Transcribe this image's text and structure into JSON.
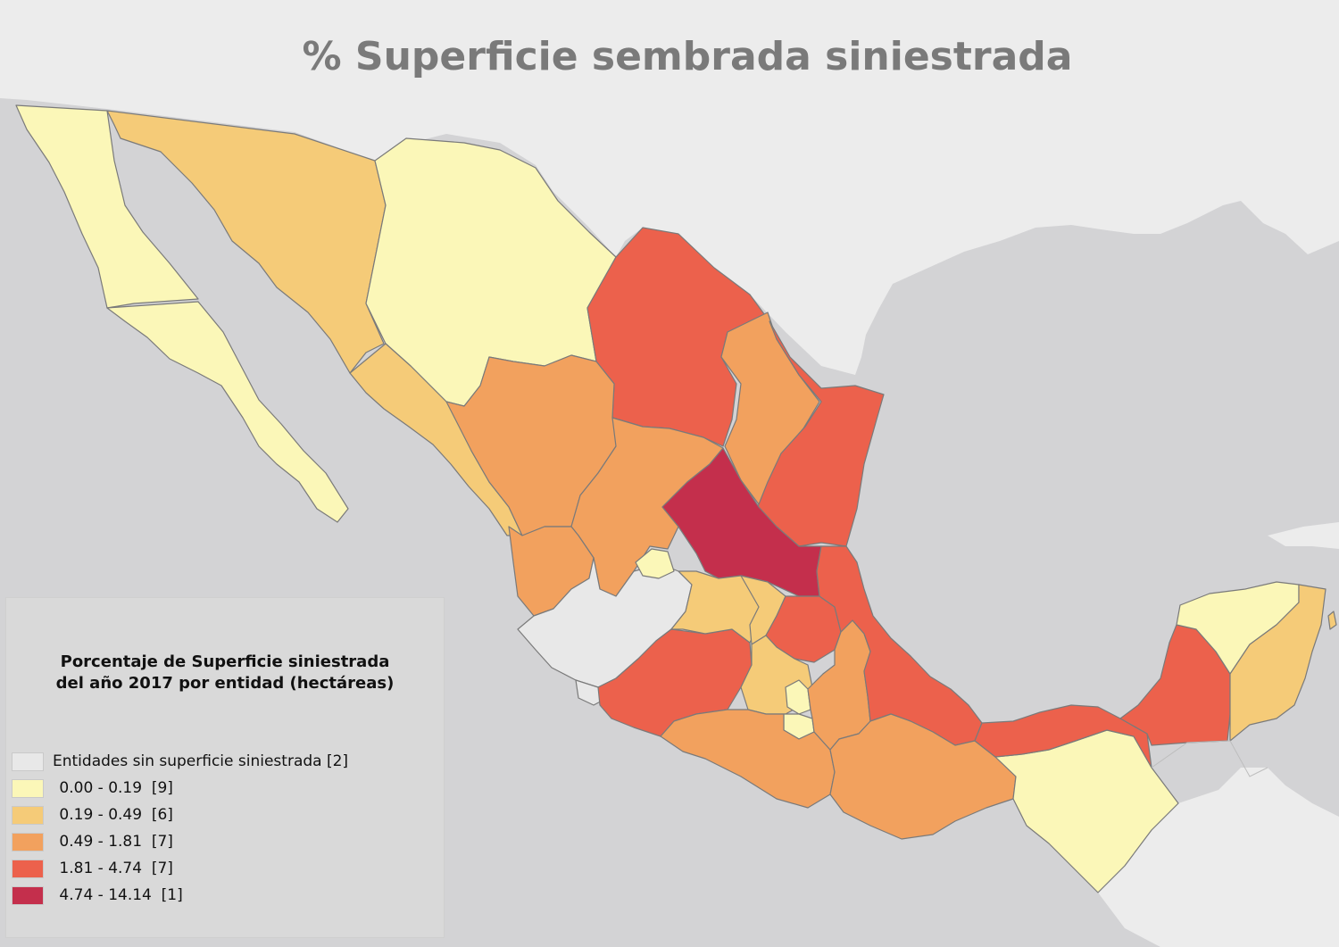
{
  "map": {
    "title": "% Superficie sembrada siniestrada",
    "colors": {
      "water": "#d3d3d5",
      "land": "#ececec",
      "border": "#7a7a7a",
      "none": "#e8e8e8",
      "c1": "#fbf7b8",
      "c2": "#f5cb78",
      "c3": "#f2a15e",
      "c4": "#ec614c",
      "c5": "#c42f4c"
    }
  },
  "legend": {
    "title_line1": "Porcentaje de Superficie siniestrada",
    "title_line2": "del año 2017 por entidad (hectáreas)",
    "items": [
      {
        "label": "Entidades sin superficie siniestrada [2]",
        "color": "#e8e8e8",
        "icon": "swatch-none"
      },
      {
        "label": " 0.00 - 0.19  [9]",
        "color": "#fbf7b8",
        "icon": "swatch-class-1"
      },
      {
        "label": " 0.19 - 0.49  [6]",
        "color": "#f5cb78",
        "icon": "swatch-class-2"
      },
      {
        "label": " 0.49 - 1.81  [7]",
        "color": "#f2a15e",
        "icon": "swatch-class-3"
      },
      {
        "label": " 1.81 - 4.74  [7]",
        "color": "#ec614c",
        "icon": "swatch-class-4"
      },
      {
        "label": " 4.74 - 14.14  [1]",
        "color": "#c42f4c",
        "icon": "swatch-class-5"
      }
    ]
  }
}
